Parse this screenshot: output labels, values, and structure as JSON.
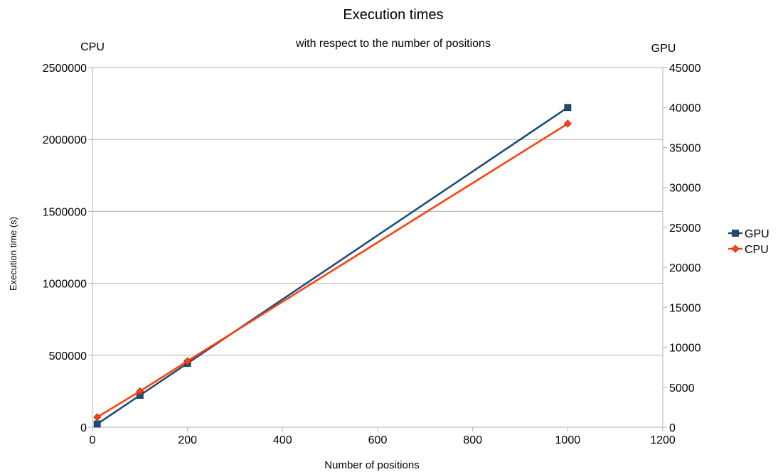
{
  "chart_data": {
    "type": "line",
    "title": "Execution times",
    "subtitle": "with respect to the number of positions",
    "xlabel": "Number of positions",
    "ylabel": "Execution time (s)",
    "y_left_label": "CPU",
    "y_right_label": "GPU",
    "xlim": [
      0,
      1200
    ],
    "x_ticks": [
      0,
      200,
      400,
      600,
      800,
      1000,
      1200
    ],
    "ylim_left": [
      0,
      2500000
    ],
    "y_left_ticks": [
      0,
      500000,
      1000000,
      1500000,
      2000000,
      2500000
    ],
    "ylim_right": [
      0,
      45000
    ],
    "y_right_ticks": [
      0,
      5000,
      10000,
      15000,
      20000,
      25000,
      30000,
      35000,
      40000,
      45000
    ],
    "grid": true,
    "legend_position": "right",
    "series": [
      {
        "name": "GPU",
        "axis": "right",
        "color": "#1f4e79",
        "marker": "square",
        "x": [
          10,
          100,
          200,
          1000
        ],
        "y": [
          400,
          4000,
          8000,
          40000
        ]
      },
      {
        "name": "CPU",
        "axis": "left",
        "color": "#ff420e",
        "marker": "diamond",
        "x": [
          10,
          100,
          200,
          1000
        ],
        "y": [
          70000,
          250000,
          460000,
          2110000
        ]
      }
    ]
  }
}
